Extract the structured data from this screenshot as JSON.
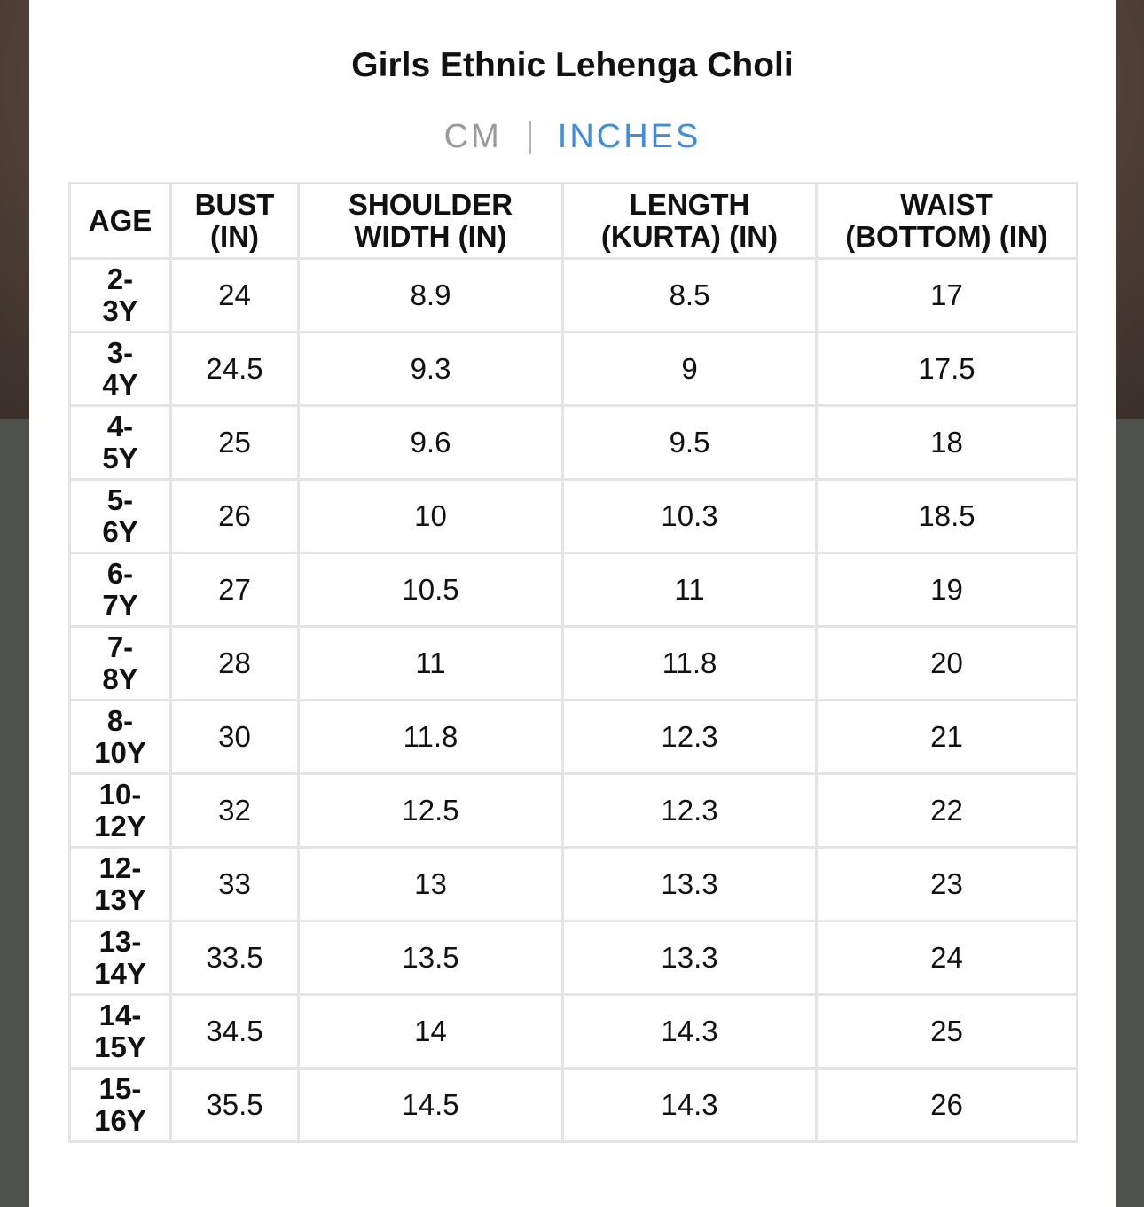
{
  "title": "Girls Ethnic Lehenga Choli",
  "units": {
    "cm_label": "CM",
    "inches_label": "INCHES",
    "selected": "INCHES"
  },
  "colors": {
    "selected_unit": "#3b8ee0",
    "unselected_unit": "#9a9a9a",
    "grid_line": "#e4e4e4"
  },
  "table": {
    "headers": [
      [
        "AGE"
      ],
      [
        "BUST",
        "(IN)"
      ],
      [
        "SHOULDER",
        "WIDTH (IN)"
      ],
      [
        "LENGTH",
        "(KURTA) (IN)"
      ],
      [
        "WAIST",
        "(BOTTOM) (IN)"
      ]
    ],
    "rows": [
      {
        "age": [
          "2-",
          "3Y"
        ],
        "bust": "24",
        "shoulder": "8.9",
        "length": "8.5",
        "waist": "17"
      },
      {
        "age": [
          "3-",
          "4Y"
        ],
        "bust": "24.5",
        "shoulder": "9.3",
        "length": "9",
        "waist": "17.5"
      },
      {
        "age": [
          "4-",
          "5Y"
        ],
        "bust": "25",
        "shoulder": "9.6",
        "length": "9.5",
        "waist": "18"
      },
      {
        "age": [
          "5-",
          "6Y"
        ],
        "bust": "26",
        "shoulder": "10",
        "length": "10.3",
        "waist": "18.5"
      },
      {
        "age": [
          "6-",
          "7Y"
        ],
        "bust": "27",
        "shoulder": "10.5",
        "length": "11",
        "waist": "19"
      },
      {
        "age": [
          "7-",
          "8Y"
        ],
        "bust": "28",
        "shoulder": "11",
        "length": "11.8",
        "waist": "20"
      },
      {
        "age": [
          "8-",
          "10Y"
        ],
        "bust": "30",
        "shoulder": "11.8",
        "length": "12.3",
        "waist": "21"
      },
      {
        "age": [
          "10-",
          "12Y"
        ],
        "bust": "32",
        "shoulder": "12.5",
        "length": "12.3",
        "waist": "22"
      },
      {
        "age": [
          "12-",
          "13Y"
        ],
        "bust": "33",
        "shoulder": "13",
        "length": "13.3",
        "waist": "23"
      },
      {
        "age": [
          "13-",
          "14Y"
        ],
        "bust": "33.5",
        "shoulder": "13.5",
        "length": "13.3",
        "waist": "24"
      },
      {
        "age": [
          "14-",
          "15Y"
        ],
        "bust": "34.5",
        "shoulder": "14",
        "length": "14.3",
        "waist": "25"
      },
      {
        "age": [
          "15-",
          "16Y"
        ],
        "bust": "35.5",
        "shoulder": "14.5",
        "length": "14.3",
        "waist": "26"
      }
    ]
  }
}
